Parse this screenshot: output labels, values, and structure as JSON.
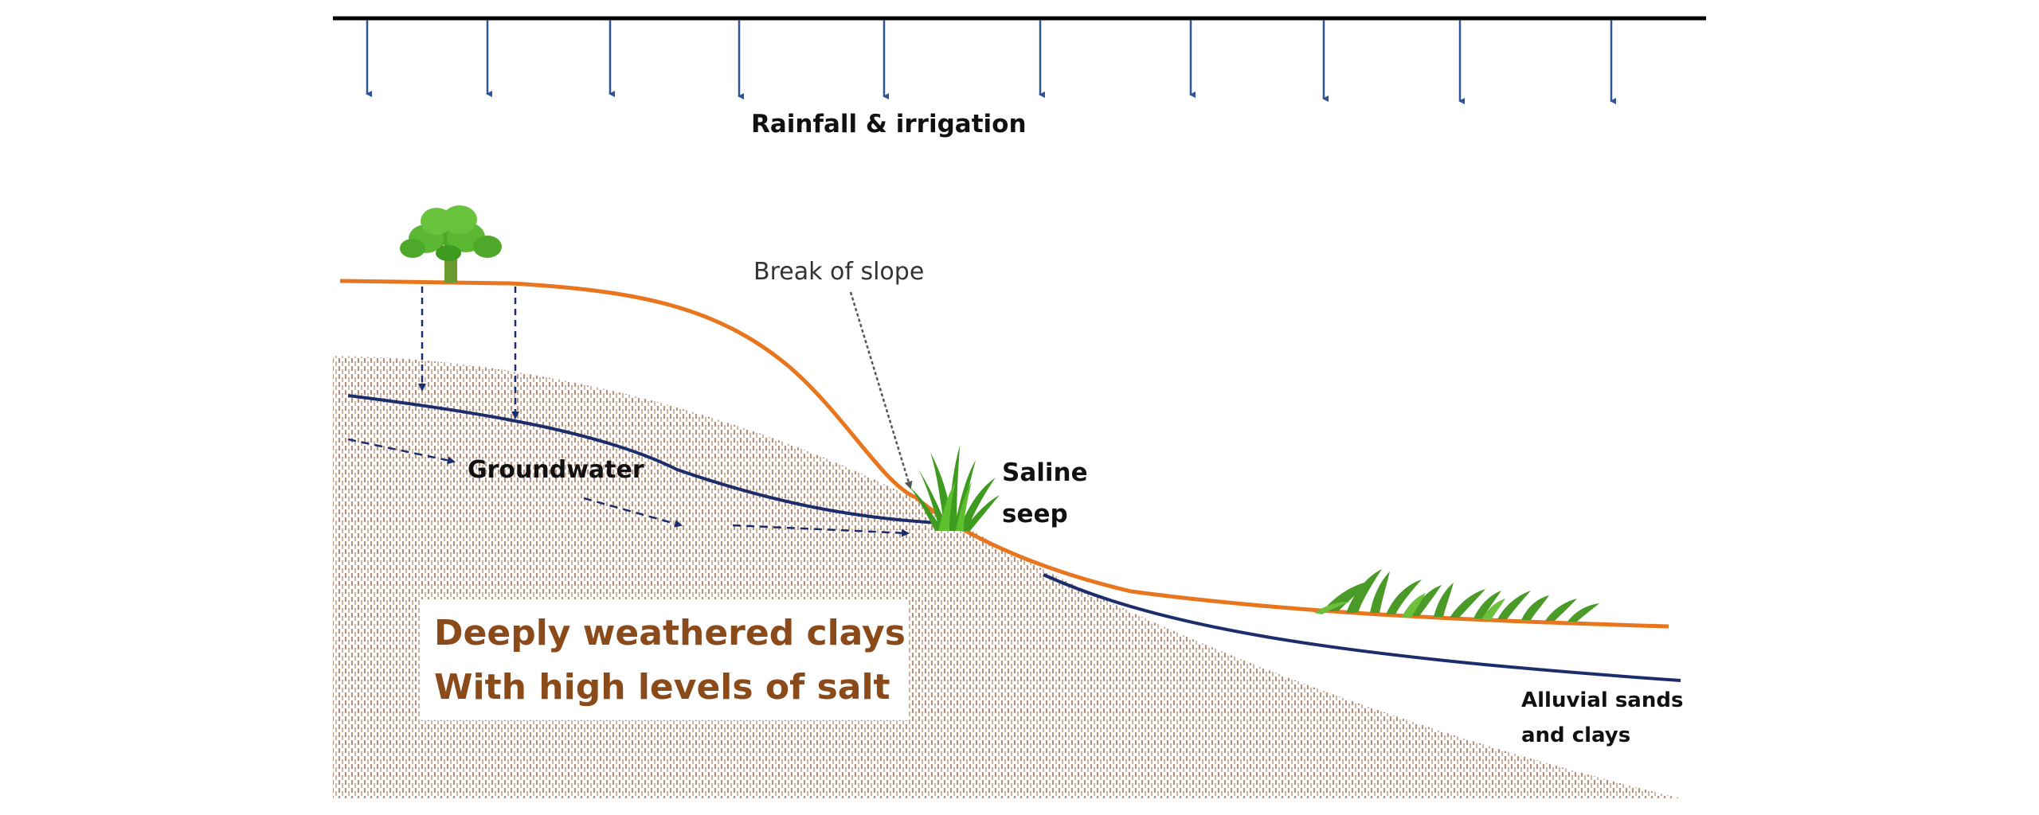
{
  "labels": {
    "rainfall": "Rainfall & irrigation",
    "break_of_slope": "Break of slope",
    "groundwater": "Groundwater",
    "saline_seep_line1": "Saline",
    "saline_seep_line2": "seep",
    "clays_line1": "Deeply weathered clays",
    "clays_line2": "With high levels of salt",
    "alluvial_line1": "Alluvial sands",
    "alluvial_line2": "and clays"
  },
  "colors": {
    "surface": "#e8761f",
    "groundwater_line": "#1c2d6b",
    "arrow_rain": "#2f5597",
    "clay_text": "#8b4a1a",
    "clay_texture": "#b99a86",
    "vegetation": "#3f9b1f",
    "tree_trunk": "#5f8a2a",
    "top_bar": "#000000"
  },
  "icons": [
    "tree-icon",
    "grass-tuft-icon",
    "grass-clump-icon"
  ]
}
